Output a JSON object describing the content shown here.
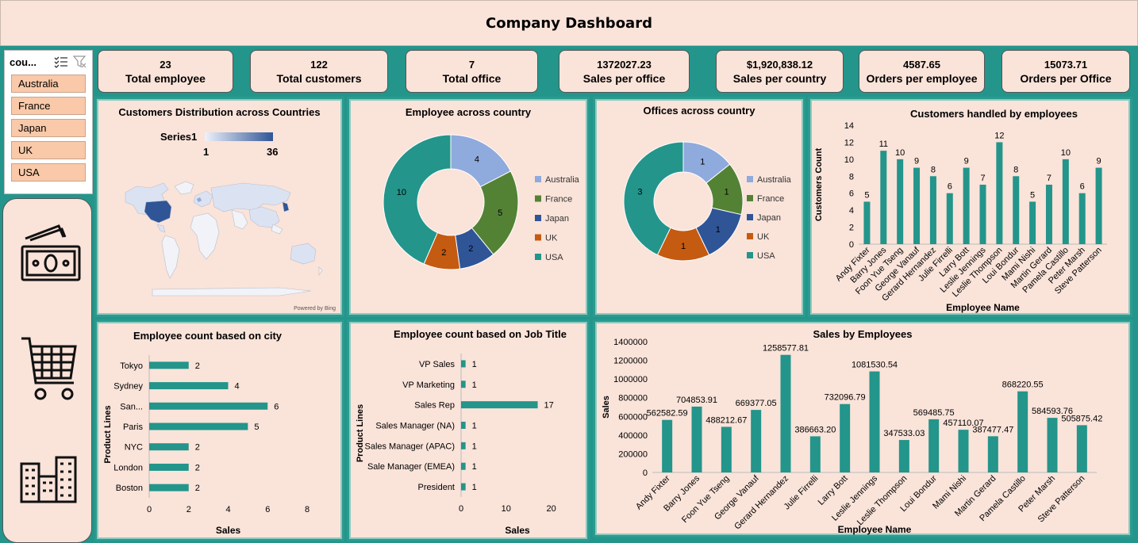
{
  "header": {
    "title": "Company Dashboard"
  },
  "slicer": {
    "title": "cou...",
    "items": [
      "Australia",
      "France",
      "Japan",
      "UK",
      "USA"
    ]
  },
  "nav": {
    "icons": [
      "money-icon",
      "shopping-cart-icon",
      "buildings-icon"
    ]
  },
  "kpis": [
    {
      "value": "23",
      "label": "Total employee"
    },
    {
      "value": "122",
      "label": "Total customers"
    },
    {
      "value": "7",
      "label": "Total office"
    },
    {
      "value": "1372027.23",
      "label": "Sales per office"
    },
    {
      "value": "$1,920,838.12",
      "label": "Sales per country"
    },
    {
      "value": "4587.65",
      "label": "Orders per employee"
    },
    {
      "value": "15073.71",
      "label": "Orders per Office"
    }
  ],
  "colors": {
    "teal": "#23958b",
    "bar": "#23958b",
    "panel": "#fae3d9",
    "australia": "#8faadc",
    "france": "#548235",
    "japan": "#2f5597",
    "uk": "#c55a11",
    "usa": "#23958b"
  },
  "chart_data": [
    {
      "type": "map",
      "title": "Customers Distribution across Countries",
      "legend_label": "Series1",
      "scale_min": "1",
      "scale_max": "36",
      "attribution": "Powered by Bing"
    },
    {
      "type": "pie",
      "title": "Employee across country",
      "categories": [
        "Australia",
        "France",
        "Japan",
        "UK",
        "USA"
      ],
      "values": [
        4,
        5,
        2,
        2,
        10
      ],
      "legend": "right"
    },
    {
      "type": "pie",
      "title": "Offices across country",
      "categories": [
        "Australia",
        "France",
        "Japan",
        "UK",
        "USA"
      ],
      "values": [
        1,
        1,
        1,
        1,
        3
      ],
      "legend": "right"
    },
    {
      "type": "bar",
      "title": "Customers handled by employees",
      "categories": [
        "Andy Fixter",
        "Barry Jones",
        "Foon Yue Tseng",
        "George Vanauf",
        "Gerard Hernandez",
        "Julie Firrelli",
        "Larry Bott",
        "Leslie Jennings",
        "Leslie Thompson",
        "Loui Bondur",
        "Mami Nishi",
        "Martin Gerard",
        "Pamela Castillo",
        "Peter Marsh",
        "Steve Patterson"
      ],
      "values": [
        5,
        11,
        10,
        9,
        8,
        6,
        9,
        7,
        12,
        8,
        5,
        7,
        10,
        6,
        9
      ],
      "ylim": [
        0,
        14
      ],
      "yticks": [
        "0",
        "2",
        "4",
        "6",
        "8",
        "10",
        "12",
        "14"
      ],
      "xlabel": "Employee Name",
      "ylabel": "Customers Count"
    },
    {
      "type": "bar",
      "orientation": "horizontal",
      "title": "Employee count based on city",
      "categories": [
        "Tokyo",
        "Sydney",
        "San...",
        "Paris",
        "NYC",
        "London",
        "Boston"
      ],
      "values": [
        2,
        4,
        6,
        5,
        2,
        2,
        2
      ],
      "xlim": [
        0,
        8
      ],
      "xticks": [
        "0",
        "2",
        "4",
        "6",
        "8"
      ],
      "xlabel": "Sales",
      "ylabel": "Product Lines"
    },
    {
      "type": "bar",
      "orientation": "horizontal",
      "title": "Employee count based on Job Title",
      "categories": [
        "VP Sales",
        "VP Marketing",
        "Sales Rep",
        "Sales Manager (NA)",
        "Sales Manager (APAC)",
        "Sale Manager (EMEA)",
        "President"
      ],
      "values": [
        1,
        1,
        17,
        1,
        1,
        1,
        1
      ],
      "xlim": [
        0,
        25
      ],
      "xticks": [
        "0",
        "10",
        "20"
      ],
      "xlabel": "Sales",
      "ylabel": "Product Lines"
    },
    {
      "type": "bar",
      "title": "Sales by Employees",
      "categories": [
        "Andy Fixter",
        "Barry Jones",
        "Foon Yue Tseng",
        "George Vanauf",
        "Gerard Hernandez",
        "Julie Firrelli",
        "Larry Bott",
        "Leslie Jennings",
        "Leslie Thompson",
        "Loui Bondur",
        "Mami Nishi",
        "Martin Gerard",
        "Pamela Castillo",
        "Peter Marsh",
        "Steve Patterson"
      ],
      "values": [
        562582.59,
        704853.91,
        488212.67,
        669377.05,
        1258577.81,
        386663.2,
        732096.79,
        1081530.54,
        347533.03,
        569485.75,
        457110.07,
        387477.47,
        868220.55,
        584593.76,
        505875.42
      ],
      "labels": [
        "562582.59",
        "704853.91",
        "488212.67",
        "669377.05",
        "1258577.81",
        "386663.20",
        "732096.79",
        "1081530.54",
        "347533.03",
        "569485.75",
        "457110.07",
        "387477.47",
        "868220.55",
        "584593.76",
        "505875.42"
      ],
      "ylim": [
        0,
        1400000
      ],
      "yticks": [
        "0",
        "200000",
        "400000",
        "600000",
        "800000",
        "1000000",
        "1200000",
        "1400000"
      ],
      "xlabel": "Employee Name",
      "ylabel": "Sales"
    }
  ]
}
